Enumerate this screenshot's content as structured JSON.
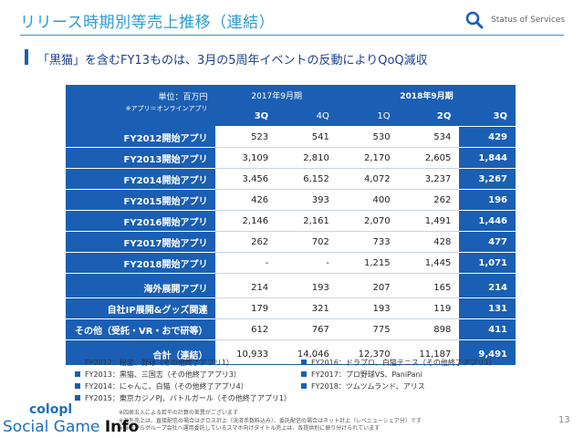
{
  "header": {
    "title": "リリース時期別等売上推移（連結）",
    "status_label": "Status of Services"
  },
  "subtitle": "「黒猫」を含むFY13ものは、3月の5周年イベントの反動によりQoQ減収",
  "table": {
    "unit": "単位：百万円",
    "unit_note": "※アプリ＝オンラインアプリ",
    "period_2017": "2017年9月期",
    "period_2018": "2018年9月期",
    "quarters": [
      "3Q",
      "4Q",
      "1Q",
      "2Q",
      "3Q"
    ],
    "rows": [
      {
        "label": "FY2012開始アプリ",
        "values": [
          "523",
          "541",
          "530",
          "534",
          "429"
        ]
      },
      {
        "label": "FY2013開始アプリ",
        "values": [
          "3,109",
          "2,810",
          "2,170",
          "2,605",
          "1,844"
        ]
      },
      {
        "label": "FY2014開始アプリ",
        "values": [
          "3,456",
          "6,152",
          "4,072",
          "3,237",
          "3,267"
        ]
      },
      {
        "label": "FY2015開始アプリ",
        "values": [
          "426",
          "393",
          "400",
          "262",
          "196"
        ]
      },
      {
        "label": "FY2016開始アプリ",
        "values": [
          "2,146",
          "2,161",
          "2,070",
          "1,491",
          "1,446"
        ]
      },
      {
        "label": "FY2017開始アプリ",
        "values": [
          "262",
          "702",
          "733",
          "428",
          "477"
        ]
      },
      {
        "label": "FY2018開始アプリ",
        "values": [
          "-",
          "-",
          "1,215",
          "1,445",
          "1,071"
        ]
      },
      {
        "label": "海外展開アプリ",
        "values": [
          "214",
          "193",
          "207",
          "165",
          "214"
        ]
      },
      {
        "label": "自社IP展開&グッズ関連",
        "values": [
          "179",
          "321",
          "193",
          "119",
          "131"
        ]
      },
      {
        "label": "その他（受託・VR・おで研等）",
        "values": [
          "612",
          "767",
          "775",
          "898",
          "411"
        ]
      }
    ],
    "total": {
      "label": "合計（連結）",
      "values": [
        "10,933",
        "14,046",
        "12,370",
        "11,187",
        "9,491"
      ]
    }
  },
  "legend": [
    "FY2012：秘宝、野球（その他終了アプリ1）",
    "FY2013：黒猫、三国志（その他終了アプリ3）",
    "FY2014：にゃんこ、白猫（その他終了アプリ4）",
    "FY2015：東京カジノPJ、バトルガール（その他終了アプリ1）",
    "FY2016：ドラプロ、白猫テニス（その他終了アプリ1）",
    "FY2017：プロ野球VS、PaniPani",
    "FY2018：ツムツムランド、アリス"
  ],
  "footnotes": [
    "※四捨五入による若干の計算の差異がございます",
    "※海外売上は、直接配信の場合はグロス計上（決済手数料込み）、委託配信の場合はネット計上（レベニューシェア分）です",
    "※当社からグループ会社へ運用委託しているスマホ向けタイトル売上は、各提供別に振り分けられています"
  ],
  "page_number": "13",
  "watermark": {
    "line1": "colopl",
    "line2a": "Social Game ",
    "line2b": "Info"
  }
}
